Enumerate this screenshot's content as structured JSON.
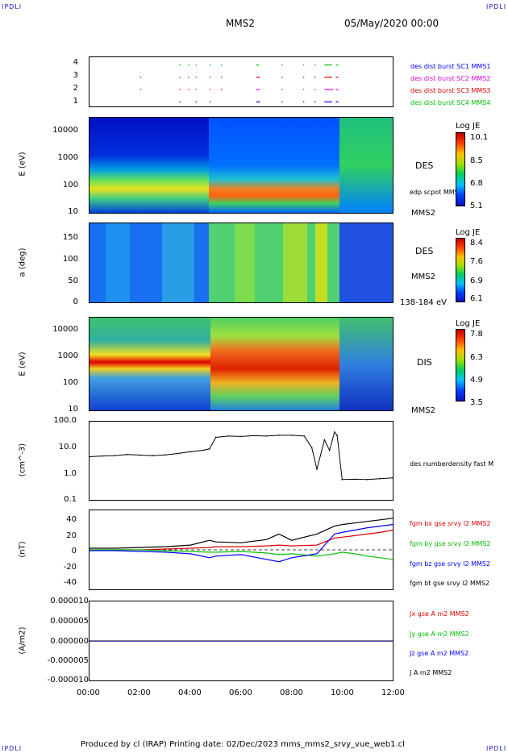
{
  "corner_tl": "IPDLI",
  "corner_tr": "IPDLI",
  "corner_bl": "IPDLI",
  "corner_br": "IPDLI",
  "header": {
    "spacecraft": "MMS2",
    "date": "05/May/2020 00:00"
  },
  "footer": {
    "text": "Produced by cl (IRAP)   Printing date: 02/Dec/2023   mms_mms2_srvy_vue_web1.cl"
  },
  "colors": {
    "blue": "#0000ff",
    "magenta": "#e000e0",
    "red": "#e00000",
    "green": "#00c000",
    "black": "#000000"
  },
  "chart_data": [
    {
      "type": "scatter",
      "panel": "burst intervals",
      "yticks": [
        "1",
        "2",
        "3",
        "4"
      ],
      "legend": [
        {
          "label": "des dist burst SC1 MMS1",
          "color": "#0000ff"
        },
        {
          "label": "des dist burst SC2 MMS2",
          "color": "#e000e0"
        },
        {
          "label": "des dist burst SC3 MMS3",
          "color": "#e00000"
        },
        {
          "label": "des dist burst SC4 MMS4",
          "color": "#00c000"
        }
      ],
      "series": [
        {
          "level": 1,
          "color": "#0000ff",
          "intervals": [
            [
              3.55,
              3.6
            ],
            [
              4.2,
              4.25
            ],
            [
              4.75,
              4.8
            ],
            [
              6.6,
              6.75
            ],
            [
              7.6,
              7.65
            ],
            [
              8.45,
              8.5
            ],
            [
              8.9,
              8.95
            ],
            [
              9.3,
              9.6
            ],
            [
              9.75,
              9.85
            ]
          ]
        },
        {
          "level": 2,
          "color": "#e000e0",
          "intervals": [
            [
              2.0,
              2.05
            ],
            [
              3.55,
              3.6
            ],
            [
              3.9,
              3.95
            ],
            [
              4.2,
              4.25
            ],
            [
              4.75,
              4.8
            ],
            [
              5.2,
              5.25
            ],
            [
              6.6,
              6.75
            ],
            [
              7.6,
              7.65
            ],
            [
              8.45,
              8.5
            ],
            [
              8.9,
              8.95
            ],
            [
              9.3,
              9.65
            ],
            [
              9.75,
              9.85
            ]
          ]
        },
        {
          "level": 3,
          "color": "#e00000",
          "intervals": [
            [
              2.0,
              2.05
            ],
            [
              3.55,
              3.6
            ],
            [
              3.9,
              3.95
            ],
            [
              4.2,
              4.25
            ],
            [
              4.75,
              4.8
            ],
            [
              5.2,
              5.25
            ],
            [
              6.6,
              6.75
            ],
            [
              7.6,
              7.65
            ],
            [
              8.45,
              8.5
            ],
            [
              8.9,
              8.95
            ],
            [
              9.3,
              9.6
            ],
            [
              9.75,
              9.85
            ]
          ]
        },
        {
          "level": 4,
          "color": "#00c000",
          "intervals": [
            [
              3.55,
              3.6
            ],
            [
              3.9,
              3.95
            ],
            [
              4.2,
              4.25
            ],
            [
              4.75,
              4.8
            ],
            [
              5.2,
              5.25
            ],
            [
              6.6,
              6.7
            ],
            [
              7.6,
              7.65
            ],
            [
              8.45,
              8.5
            ],
            [
              8.9,
              8.95
            ],
            [
              9.3,
              9.6
            ],
            [
              9.75,
              9.85
            ]
          ]
        }
      ],
      "xlim": [
        0,
        12
      ]
    },
    {
      "type": "heatmap",
      "panel": "DES energy",
      "ylabel": "E (eV)",
      "yticks": [
        "10",
        "100",
        "1000",
        "10000"
      ],
      "right_labels": [
        "DES",
        "edp scpot MMS2",
        "MMS2"
      ],
      "colorbar": {
        "title": "Log JE",
        "ticks": [
          "10.1",
          "8.5",
          "6.8",
          "5.1"
        ]
      },
      "xlim": [
        0,
        12
      ]
    },
    {
      "type": "heatmap",
      "panel": "DES pitch angle",
      "ylabel": "a (deg)",
      "yticks": [
        "0",
        "50",
        "100",
        "150"
      ],
      "ylim": [
        0,
        180
      ],
      "right_labels": [
        "DES",
        "MMS2",
        "138-184 eV"
      ],
      "colorbar": {
        "title": "Log JE",
        "ticks": [
          "8.4",
          "7.6",
          "6.9",
          "6.1"
        ]
      },
      "xlim": [
        0,
        12
      ]
    },
    {
      "type": "heatmap",
      "panel": "DIS energy",
      "ylabel": "E (eV)",
      "yticks": [
        "10",
        "100",
        "1000",
        "10000"
      ],
      "right_labels": [
        "DIS",
        "MMS2"
      ],
      "colorbar": {
        "title": "Log JE",
        "ticks": [
          "7.8",
          "6.3",
          "4.9",
          "3.5"
        ]
      },
      "xlim": [
        0,
        12
      ]
    },
    {
      "type": "line",
      "panel": "density",
      "ylabel": "(cm^-3)",
      "yticks": [
        "0.1",
        "1.0",
        "10.0",
        "100.0"
      ],
      "ylim": [
        0.1,
        100
      ],
      "yscale": "log",
      "right_labels": [
        "des numberdensity fast M"
      ],
      "x": [
        0,
        0.5,
        1,
        1.5,
        2,
        2.5,
        3,
        3.5,
        4,
        4.5,
        4.75,
        5,
        5.5,
        6,
        6.5,
        7,
        7.5,
        8,
        8.5,
        8.8,
        9,
        9.3,
        9.5,
        9.7,
        9.8,
        10,
        10.5,
        11,
        11.5,
        12
      ],
      "y": [
        4.5,
        4.8,
        5,
        5.5,
        5.2,
        5,
        5.3,
        6,
        7,
        8,
        9,
        25,
        28,
        27,
        29,
        28,
        30,
        30,
        28,
        10,
        1.5,
        20,
        8,
        40,
        30,
        0.6,
        0.62,
        0.6,
        0.65,
        0.7
      ],
      "xlim": [
        0,
        12
      ]
    },
    {
      "type": "line",
      "panel": "magnetic field",
      "ylabel": "(nT)",
      "yticks": [
        "-40",
        "-20",
        "0",
        "20",
        "40"
      ],
      "ylim": [
        -50,
        50
      ],
      "legend": [
        {
          "label": "fgm bx gse srvy l2 MMS2",
          "color": "#e00000"
        },
        {
          "label": "fgm by gse srvy l2 MMS2",
          "color": "#00c000"
        },
        {
          "label": "fgm bz gse srvy l2 MMS2",
          "color": "#0000ff"
        },
        {
          "label": "fgm bt gse srvy l2 MMS2",
          "color": "#000000"
        }
      ],
      "x": [
        0,
        1,
        2,
        3,
        4,
        4.75,
        5,
        6,
        7,
        7.5,
        8,
        9,
        9.7,
        10,
        10.5,
        11,
        11.5,
        12
      ],
      "series": [
        {
          "name": "fgm bx gse srvy l2 MMS2",
          "color": "#e00000",
          "values": [
            0,
            0,
            0,
            1,
            2,
            3,
            4,
            4,
            5,
            6,
            5,
            6,
            15,
            16,
            18,
            20,
            22,
            25
          ]
        },
        {
          "name": "fgm by gse srvy l2 MMS2",
          "color": "#00c000",
          "values": [
            0,
            0,
            0,
            -1,
            -2,
            -3,
            -3,
            -2,
            -4,
            -6,
            -5,
            -8,
            -5,
            -3,
            -5,
            -8,
            -10,
            -12
          ]
        },
        {
          "name": "fgm bz gse srvy l2 MMS2",
          "color": "#0000ff",
          "values": [
            -1,
            -1,
            -2,
            -3,
            -5,
            -10,
            -8,
            -6,
            -12,
            -15,
            -10,
            -5,
            20,
            22,
            25,
            28,
            30,
            32
          ]
        },
        {
          "name": "fgm bt gse srvy l2 MMS2",
          "color": "#000000",
          "values": [
            2,
            2,
            3,
            4,
            6,
            12,
            10,
            9,
            13,
            20,
            12,
            20,
            30,
            32,
            34,
            36,
            38,
            40
          ]
        }
      ],
      "xlim": [
        0,
        12
      ]
    },
    {
      "type": "line",
      "panel": "current density",
      "ylabel": "(A/m2)",
      "yticks": [
        "-0.000010",
        "-0.000005",
        "0.000000",
        "0.000005",
        "0.000010"
      ],
      "ylim": [
        -1e-05,
        1e-05
      ],
      "legend": [
        {
          "label": "Jx gse A m2 MMS2",
          "color": "#e00000"
        },
        {
          "label": "Jy gse A m2 MMS2",
          "color": "#00c000"
        },
        {
          "label": "Jz gse A m2 MMS2",
          "color": "#0000ff"
        },
        {
          "label": "J A m2 MMS2",
          "color": "#000000"
        }
      ],
      "xticks": [
        "00:00",
        "02:00",
        "04:00",
        "06:00",
        "08:00",
        "10:00",
        "12:00"
      ],
      "xlim": [
        0,
        12
      ]
    }
  ]
}
